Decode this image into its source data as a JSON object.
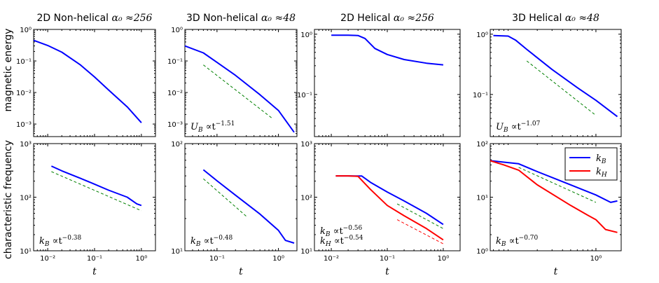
{
  "figure": {
    "y_labels": [
      "magnetic energy",
      "characteristic frequency"
    ],
    "x_label": "t",
    "colors": {
      "kB": "#0000ff",
      "kH": "#ff0000",
      "fit": "#008000"
    }
  },
  "chart_data": [
    {
      "type": "line",
      "panel": "2D Non-helical energy",
      "title": "2D Non-helical",
      "title_math": "α₀ ≈256",
      "xscale": "log",
      "yscale": "log",
      "xlim": [
        0.005,
        2.0
      ],
      "ylim": [
        0.0004,
        1.0
      ],
      "xticks": [
        0.01,
        0.1,
        1
      ],
      "xtick_labels": [
        "10⁻²",
        "10⁻¹",
        "10⁰"
      ],
      "yticks": [
        0.001,
        0.01,
        0.1,
        1
      ],
      "ytick_labels": [
        "10⁻³",
        "10⁻²",
        "10⁻¹",
        "10⁰"
      ],
      "series": [
        {
          "name": "U_B",
          "color": "#0000ff",
          "style": "solid",
          "x": [
            0.005,
            0.01,
            0.02,
            0.05,
            0.1,
            0.2,
            0.5,
            1.0
          ],
          "y": [
            0.45,
            0.31,
            0.19,
            0.075,
            0.031,
            0.012,
            0.0035,
            0.0011
          ]
        }
      ],
      "annotations": []
    },
    {
      "type": "line",
      "panel": "3D Non-helical energy",
      "title": "3D Non-helical",
      "title_math": "α₀ ≈48",
      "xscale": "log",
      "yscale": "log",
      "xlim": [
        0.03,
        2.0
      ],
      "ylim": [
        0.0004,
        1.0
      ],
      "xticks": [
        0.1,
        1
      ],
      "xtick_labels": [
        "10⁻¹",
        "10⁰"
      ],
      "yticks": [
        0.001,
        0.01,
        0.1,
        1
      ],
      "ytick_labels": [
        "10⁻³",
        "10⁻²",
        "10⁻¹",
        "10⁰"
      ],
      "series": [
        {
          "name": "U_B",
          "color": "#0000ff",
          "style": "solid",
          "x": [
            0.03,
            0.06,
            0.1,
            0.2,
            0.5,
            1.0,
            1.8
          ],
          "y": [
            0.3,
            0.18,
            0.09,
            0.035,
            0.0085,
            0.0027,
            0.00055
          ]
        },
        {
          "name": "fit",
          "color": "#008000",
          "style": "dashed",
          "x": [
            0.06,
            0.8
          ],
          "y": [
            0.075,
            0.0015
          ]
        }
      ],
      "annotations": [
        {
          "text": "U",
          "sub": "B",
          "after": " ∝t",
          "sup": "−1.51"
        }
      ]
    },
    {
      "type": "line",
      "panel": "2D Helical energy",
      "title": "2D Helical",
      "title_math": "α₀ ≈256",
      "xscale": "log",
      "yscale": "log",
      "xlim": [
        0.005,
        2.0
      ],
      "ylim": [
        0.02,
        1.2
      ],
      "xticks": [
        0.01,
        0.1,
        1
      ],
      "xtick_labels": [
        "10⁻²",
        "10⁻¹",
        "10⁰"
      ],
      "yticks": [
        0.1,
        1
      ],
      "ytick_labels": [
        "10⁻¹",
        "10⁰"
      ],
      "series": [
        {
          "name": "U_B",
          "color": "#0000ff",
          "style": "solid",
          "x": [
            0.01,
            0.02,
            0.03,
            0.04,
            0.06,
            0.1,
            0.2,
            0.5,
            1.0
          ],
          "y": [
            0.96,
            0.96,
            0.95,
            0.85,
            0.58,
            0.46,
            0.38,
            0.33,
            0.31
          ]
        }
      ],
      "annotations": []
    },
    {
      "type": "line",
      "panel": "3D Helical energy",
      "title": "3D Helical",
      "title_math": "α₀ ≈48",
      "xscale": "log",
      "yscale": "log",
      "xlim": [
        0.055,
        2.0
      ],
      "ylim": [
        0.02,
        1.2
      ],
      "xticks": [
        1
      ],
      "xtick_labels": [
        "10⁰"
      ],
      "yticks": [
        0.1,
        1
      ],
      "ytick_labels": [
        "10⁻¹",
        "10⁰"
      ],
      "series": [
        {
          "name": "U_B",
          "color": "#0000ff",
          "style": "solid",
          "x": [
            0.06,
            0.09,
            0.11,
            0.15,
            0.3,
            0.6,
            1.0,
            1.8
          ],
          "y": [
            0.95,
            0.93,
            0.8,
            0.56,
            0.26,
            0.13,
            0.08,
            0.043
          ]
        },
        {
          "name": "fit",
          "color": "#008000",
          "style": "dashed",
          "x": [
            0.15,
            1.0
          ],
          "y": [
            0.36,
            0.045
          ]
        }
      ],
      "annotations": [
        {
          "text": "U",
          "sub": "B",
          "after": " ∝t",
          "sup": "−1.07"
        }
      ]
    },
    {
      "type": "line",
      "panel": "2D Non-helical frequency",
      "xscale": "log",
      "yscale": "log",
      "xlim": [
        0.005,
        2.0
      ],
      "ylim": [
        10,
        1000
      ],
      "xticks": [
        0.01,
        0.1,
        1
      ],
      "xtick_labels": [
        "10⁻²",
        "10⁻¹",
        "10⁰"
      ],
      "yticks": [
        10,
        100,
        1000
      ],
      "ytick_labels": [
        "10¹",
        "10²",
        "10³"
      ],
      "series": [
        {
          "name": "k_B",
          "color": "#0000ff",
          "style": "solid",
          "x": [
            0.012,
            0.02,
            0.05,
            0.1,
            0.2,
            0.5,
            0.8,
            1.0
          ],
          "y": [
            380,
            310,
            225,
            175,
            135,
            100,
            75,
            70
          ]
        },
        {
          "name": "fit",
          "color": "#008000",
          "style": "dashed",
          "x": [
            0.012,
            1.0
          ],
          "y": [
            300,
            56
          ]
        }
      ],
      "annotations": [
        {
          "text": "k",
          "sub": "B",
          "after": " ∝t",
          "sup": "−0.38"
        }
      ]
    },
    {
      "type": "line",
      "panel": "3D Non-helical frequency",
      "xscale": "log",
      "yscale": "log",
      "xlim": [
        0.03,
        2.0
      ],
      "ylim": [
        10,
        100
      ],
      "xticks": [
        0.1,
        1
      ],
      "xtick_labels": [
        "10⁻¹",
        "10⁰"
      ],
      "yticks": [
        10,
        100
      ],
      "ytick_labels": [
        "10¹",
        "10²"
      ],
      "series": [
        {
          "name": "k_B",
          "color": "#0000ff",
          "style": "solid",
          "x": [
            0.06,
            0.1,
            0.2,
            0.5,
            1.0,
            1.3,
            1.8
          ],
          "y": [
            57,
            45,
            33,
            22,
            15.5,
            12.5,
            11.8
          ]
        },
        {
          "name": "fit",
          "color": "#008000",
          "style": "dashed",
          "x": [
            0.06,
            0.3
          ],
          "y": [
            47,
            21
          ]
        }
      ],
      "annotations": [
        {
          "text": "k",
          "sub": "B",
          "after": " ∝t",
          "sup": "−0.48"
        }
      ]
    },
    {
      "type": "line",
      "panel": "2D Helical frequency",
      "xscale": "log",
      "yscale": "log",
      "xlim": [
        0.005,
        2.0
      ],
      "ylim": [
        10,
        1000
      ],
      "xticks": [
        0.01,
        0.1,
        1
      ],
      "xtick_labels": [
        "10⁻²",
        "10⁻¹",
        "10⁰"
      ],
      "yticks": [
        10,
        100,
        1000
      ],
      "ytick_labels": [
        "10¹",
        "10²",
        "10³"
      ],
      "series": [
        {
          "name": "k_B",
          "color": "#0000ff",
          "style": "solid",
          "x": [
            0.012,
            0.02,
            0.035,
            0.05,
            0.1,
            0.2,
            0.5,
            1.0
          ],
          "y": [
            250,
            250,
            248,
            190,
            125,
            85,
            50,
            31
          ]
        },
        {
          "name": "k_H",
          "color": "#ff0000",
          "style": "solid",
          "x": [
            0.012,
            0.02,
            0.03,
            0.05,
            0.1,
            0.2,
            0.5,
            1.0
          ],
          "y": [
            250,
            250,
            245,
            140,
            70,
            45,
            26,
            16
          ]
        },
        {
          "name": "k_B fit",
          "color": "#008000",
          "style": "dashed",
          "x": [
            0.15,
            1.0
          ],
          "y": [
            75,
            26
          ]
        },
        {
          "name": "k_H fit",
          "color": "#ff0000",
          "style": "dashed",
          "x": [
            0.15,
            1.0
          ],
          "y": [
            38,
            13.5
          ]
        }
      ],
      "annotations": [
        {
          "text": "k",
          "sub": "B",
          "after": " ∝t",
          "sup": "−0.56"
        },
        {
          "text": "k",
          "sub": "H",
          "after": " ∝t",
          "sup": "−0.54"
        }
      ]
    },
    {
      "type": "line",
      "panel": "3D Helical frequency",
      "xscale": "log",
      "yscale": "log",
      "xlim": [
        0.055,
        2.0
      ],
      "ylim": [
        1,
        100
      ],
      "xticks": [
        1
      ],
      "xtick_labels": [
        "10⁰"
      ],
      "yticks": [
        1,
        10,
        100
      ],
      "ytick_labels": [
        "10⁰",
        "10¹",
        "10²"
      ],
      "series": [
        {
          "name": "k_B",
          "color": "#0000ff",
          "style": "solid",
          "x": [
            0.055,
            0.08,
            0.12,
            0.2,
            0.5,
            1.0,
            1.5,
            1.8
          ],
          "y": [
            48,
            45,
            42,
            30,
            17,
            11,
            8,
            8.5
          ]
        },
        {
          "name": "k_H",
          "color": "#ff0000",
          "style": "solid",
          "x": [
            0.055,
            0.08,
            0.12,
            0.2,
            0.5,
            0.8,
            1.0,
            1.3,
            1.8
          ],
          "y": [
            48,
            40,
            32,
            17,
            7,
            4.6,
            3.8,
            2.5,
            2.2
          ]
        },
        {
          "name": "fit",
          "color": "#008000",
          "style": "dashed",
          "x": [
            0.12,
            1.0
          ],
          "y": [
            36,
            8
          ]
        }
      ],
      "annotations": [
        {
          "text": "k",
          "sub": "B",
          "after": " ∝t",
          "sup": "−0.70"
        }
      ],
      "legend": {
        "placement": "top-right",
        "entries": [
          {
            "label": "k",
            "sub": "B",
            "color": "#0000ff"
          },
          {
            "label": "k",
            "sub": "H",
            "color": "#ff0000"
          }
        ]
      }
    }
  ]
}
